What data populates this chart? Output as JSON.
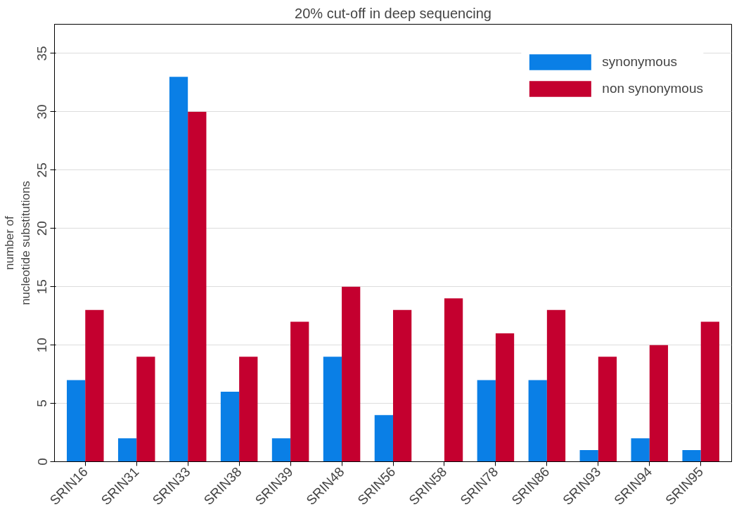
{
  "chart_data": {
    "type": "bar",
    "title": "20% cut-off in deep sequencing",
    "ylabel": "number of\nnucleotide substitutions",
    "categories": [
      "SRIN16",
      "SRIN31",
      "SRIN33",
      "SRIN38",
      "SRIN39",
      "SRIN48",
      "SRIN56",
      "SRIN58",
      "SRIN78",
      "SRIN86",
      "SRIN93",
      "SRIN94",
      "SRIN95"
    ],
    "series": [
      {
        "name": "synonymous",
        "color": "#0a7fe6",
        "values": [
          7,
          2,
          33,
          6,
          2,
          9,
          4,
          0,
          7,
          7,
          1,
          2,
          1
        ]
      },
      {
        "name": "non synonymous",
        "color": "#c4002f",
        "values": [
          13,
          9,
          30,
          9,
          12,
          15,
          13,
          14,
          11,
          13,
          9,
          10,
          12
        ]
      }
    ],
    "ylim": [
      0,
      37.5
    ],
    "yticks": [
      0,
      5,
      10,
      15,
      20,
      25,
      30,
      35
    ],
    "grid": "y",
    "legend": "top right"
  }
}
